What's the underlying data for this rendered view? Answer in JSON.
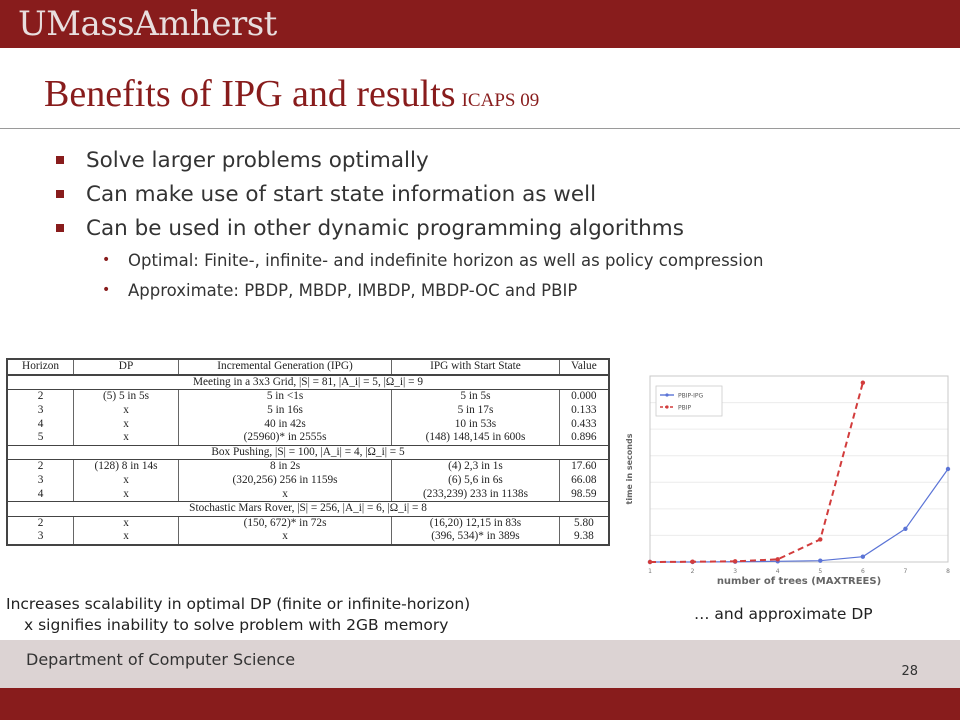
{
  "header": {
    "logo_text": "UMassAmherst"
  },
  "slide": {
    "title": "Benefits of IPG and results",
    "subtitle": "ICAPS 09",
    "bullets": [
      "Solve larger problems optimally",
      "Can make use of start state information as well",
      "Can be used in other dynamic programming algorithms"
    ],
    "subbullets": [
      "Optimal: Finite-, infinite- and indefinite horizon as well as policy compression",
      "Approximate: PBDP, MBDP, IMBDP, MBDP-OC and PBIP"
    ]
  },
  "table": {
    "headers": [
      "Horizon",
      "DP",
      "Incremental Generation (IPG)",
      "IPG with Start State",
      "Value"
    ],
    "sections": [
      {
        "title": "Meeting in a 3x3 Grid, |S| = 81, |A_i| = 5, |Ω_i| = 9",
        "rows": [
          [
            "2",
            "(5) 5 in 5s",
            "5 in <1s",
            "5 in 5s",
            "0.000"
          ],
          [
            "3",
            "x",
            "5 in 16s",
            "5 in 17s",
            "0.133"
          ],
          [
            "4",
            "x",
            "40 in 42s",
            "10 in 53s",
            "0.433"
          ],
          [
            "5",
            "x",
            "(25960)* in 2555s",
            "(148) 148,145 in 600s",
            "0.896"
          ]
        ]
      },
      {
        "title": "Box Pushing, |S| = 100, |A_i| = 4, |Ω_i| = 5",
        "rows": [
          [
            "2",
            "(128) 8 in 14s",
            "8 in 2s",
            "(4) 2,3 in 1s",
            "17.60"
          ],
          [
            "3",
            "x",
            "(320,256) 256 in 1159s",
            "(6) 5,6 in 6s",
            "66.08"
          ],
          [
            "4",
            "x",
            "x",
            "(233,239) 233 in 1138s",
            "98.59"
          ]
        ]
      },
      {
        "title": "Stochastic Mars Rover, |S| = 256, |A_i| = 6, |Ω_i| = 8",
        "rows": [
          [
            "2",
            "x",
            "(150, 672)* in 72s",
            "(16,20) 12,15 in 83s",
            "5.80"
          ],
          [
            "3",
            "x",
            "x",
            "(396, 534)* in 389s",
            "9.38"
          ]
        ]
      }
    ]
  },
  "chart_data": {
    "type": "line",
    "xlabel": "number of trees (MAXTREES)",
    "ylabel": "time in seconds",
    "x": [
      1,
      2,
      3,
      4,
      5,
      6,
      7,
      8
    ],
    "xlim": [
      1,
      8
    ],
    "ylim": [
      0,
      1400
    ],
    "legend_position": "top-left",
    "series": [
      {
        "name": "PBIP-IPG",
        "color": "#5b74d6",
        "style": "solid",
        "x": [
          1,
          2,
          3,
          4,
          5,
          6,
          7,
          8
        ],
        "y": [
          0,
          0,
          2,
          5,
          10,
          40,
          250,
          700
        ]
      },
      {
        "name": "PBIP",
        "color": "#d23c3c",
        "style": "dashed",
        "x": [
          1,
          2,
          3,
          4,
          5,
          6
        ],
        "y": [
          0,
          2,
          5,
          20,
          170,
          1350
        ]
      }
    ],
    "x_ticks": [
      "1",
      "2",
      "3",
      "4",
      "5",
      "6",
      "7",
      "8"
    ]
  },
  "captions": {
    "left_line1": "Increases scalability in optimal DP (finite or infinite-horizon)",
    "left_line2": "x signifies inability to solve problem with 2GB memory",
    "right": "… and approximate DP"
  },
  "footer": {
    "department": "Department of Computer Science",
    "page_number": "28"
  },
  "colors": {
    "brand_maroon": "#881c1c",
    "footer_bg": "#dcd3d3"
  }
}
